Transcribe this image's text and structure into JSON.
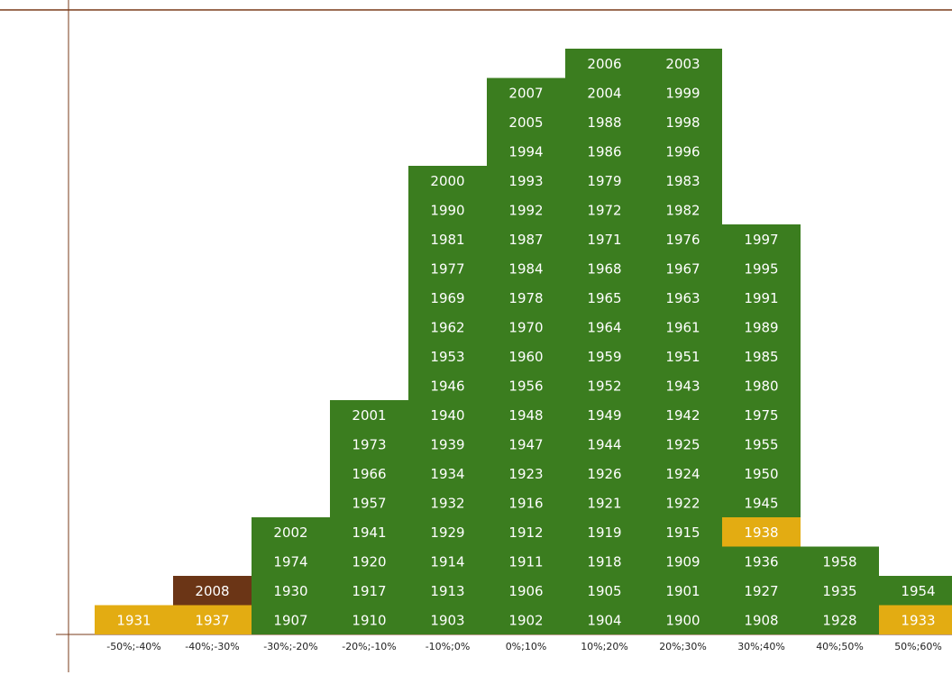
{
  "chart_data": {
    "type": "year-histogram",
    "color": "#3b7d1f",
    "special": [
      {
        "color": "#e3ac12",
        "years": [
          "1931",
          "1937",
          "1938",
          "1933"
        ]
      },
      {
        "color": "#6b3516",
        "years": [
          "2008"
        ]
      }
    ],
    "categories": [
      "-50%;-40%",
      "-40%;-30%",
      "-30%;-20%",
      "-20%;-10%",
      "-10%;0%",
      "0%;10%",
      "10%;20%",
      "20%;30%",
      "30%;40%",
      "40%;50%",
      "50%;60%"
    ],
    "columns": [
      [
        "1931"
      ],
      [
        "1937",
        "2008"
      ],
      [
        "1907",
        "1930",
        "1974",
        "2002"
      ],
      [
        "1910",
        "1917",
        "1920",
        "1941",
        "1957",
        "1966",
        "1973",
        "2001"
      ],
      [
        "1903",
        "1913",
        "1914",
        "1929",
        "1932",
        "1934",
        "1939",
        "1940",
        "1946",
        "1953",
        "1962",
        "1969",
        "1977",
        "1981",
        "1990",
        "2000"
      ],
      [
        "1902",
        "1906",
        "1911",
        "1912",
        "1916",
        "1923",
        "1947",
        "1948",
        "1956",
        "1960",
        "1970",
        "1978",
        "1984",
        "1987",
        "1992",
        "1993",
        "1994",
        "2005",
        "2007"
      ],
      [
        "1904",
        "1905",
        "1918",
        "1919",
        "1921",
        "1926",
        "1944",
        "1949",
        "1952",
        "1959",
        "1964",
        "1965",
        "1968",
        "1971",
        "1972",
        "1979",
        "1986",
        "1988",
        "2004",
        "2006"
      ],
      [
        "1900",
        "1901",
        "1909",
        "1915",
        "1922",
        "1924",
        "1925",
        "1942",
        "1943",
        "1951",
        "1961",
        "1963",
        "1967",
        "1976",
        "1982",
        "1983",
        "1996",
        "1998",
        "1999",
        "2003"
      ],
      [
        "1908",
        "1927",
        "1936",
        "1938",
        "1945",
        "1950",
        "1955",
        "1975",
        "1980",
        "1985",
        "1989",
        "1991",
        "1995",
        "1997"
      ],
      [
        "1928",
        "1935",
        "1958"
      ],
      [
        "1933",
        "1954"
      ]
    ]
  }
}
